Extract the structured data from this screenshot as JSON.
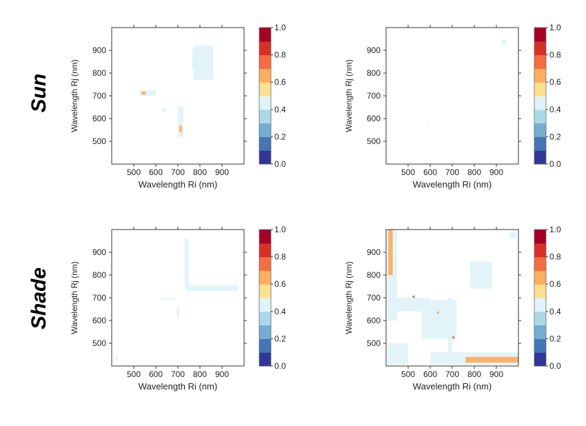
{
  "row_labels": [
    "Sun",
    "Shade"
  ],
  "colorbar": {
    "ticks": [
      "0.0",
      "0.2",
      "0.4",
      "0.6",
      "0.8",
      "1.0"
    ],
    "colors": [
      "#313695",
      "#4575b4",
      "#74add1",
      "#abd9e9",
      "#e0f3f8",
      "#fee090",
      "#fdae61",
      "#f46d43",
      "#d73027",
      "#a50026"
    ]
  },
  "chart_data": [
    {
      "type": "heatmap",
      "panel": "sun-left",
      "xlabel": "Wavelength Ri (nm)",
      "ylabel": "Wavelength Rj (nm)",
      "xticks": [
        "500",
        "600",
        "700",
        "800",
        "900"
      ],
      "yticks": [
        "500",
        "600",
        "700",
        "800",
        "900"
      ],
      "xlim": [
        400,
        1000
      ],
      "ylim": [
        400,
        1000
      ],
      "clim": [
        0,
        1
      ],
      "regions": [
        {
          "x": [
            770,
            860
          ],
          "y": [
            770,
            920
          ],
          "value": 0.45
        },
        {
          "x": [
            765,
            815
          ],
          "y": [
            820,
            905
          ],
          "value": 0.4
        },
        {
          "x": [
            525,
            600
          ],
          "y": [
            700,
            725
          ],
          "value": 0.45
        },
        {
          "x": [
            535,
            555
          ],
          "y": [
            705,
            718
          ],
          "value": 0.62
        },
        {
          "x": [
            700,
            725
          ],
          "y": [
            520,
            650
          ],
          "value": 0.45
        },
        {
          "x": [
            707,
            718
          ],
          "y": [
            540,
            570
          ],
          "value": 0.65
        },
        {
          "x": [
            630,
            648
          ],
          "y": [
            630,
            648
          ],
          "value": 0.42
        }
      ]
    },
    {
      "type": "heatmap",
      "panel": "sun-right",
      "xlabel": "Wavelength Ri (nm)",
      "ylabel": "Wavelength Rj (nm)",
      "xticks": [
        "500",
        "600",
        "700",
        "800",
        "900"
      ],
      "yticks": [
        "500",
        "600",
        "700",
        "800",
        "900"
      ],
      "xlim": [
        400,
        1000
      ],
      "ylim": [
        400,
        1000
      ],
      "clim": [
        0,
        1
      ],
      "regions": [
        {
          "x": [
            925,
            945
          ],
          "y": [
            925,
            945
          ],
          "value": 0.42
        },
        {
          "x": [
            585,
            592
          ],
          "y": [
            585,
            592
          ],
          "value": 0.42
        }
      ]
    },
    {
      "type": "heatmap",
      "panel": "shade-left",
      "xlabel": "Wavelength Ri (nm)",
      "ylabel": "Wavelength Rj (nm)",
      "xticks": [
        "500",
        "600",
        "700",
        "800",
        "900"
      ],
      "yticks": [
        "500",
        "600",
        "700",
        "800",
        "900"
      ],
      "xlim": [
        400,
        1000
      ],
      "ylim": [
        400,
        1000
      ],
      "clim": [
        0,
        1
      ],
      "regions": [
        {
          "x": [
            730,
            750
          ],
          "y": [
            740,
            960
          ],
          "value": 0.45
        },
        {
          "x": [
            740,
            970
          ],
          "y": [
            730,
            755
          ],
          "value": 0.45
        },
        {
          "x": [
            620,
            680
          ],
          "y": [
            693,
            700
          ],
          "value": 0.42
        },
        {
          "x": [
            695,
            705
          ],
          "y": [
            610,
            660
          ],
          "value": 0.42
        },
        {
          "x": [
            420,
            428
          ],
          "y": [
            428,
            436
          ],
          "value": 0.55
        }
      ]
    },
    {
      "type": "heatmap",
      "panel": "shade-right",
      "xlabel": "Wavelength Ri (nm)",
      "ylabel": "Wavelength Rj (nm)",
      "xticks": [
        "500",
        "600",
        "700",
        "800",
        "900"
      ],
      "yticks": [
        "500",
        "600",
        "700",
        "800",
        "900"
      ],
      "xlim": [
        400,
        1000
      ],
      "ylim": [
        400,
        1000
      ],
      "clim": [
        0,
        1
      ],
      "regions": [
        {
          "x": [
            405,
            450
          ],
          "y": [
            600,
            1000
          ],
          "value": 0.45
        },
        {
          "x": [
            410,
            430
          ],
          "y": [
            800,
            1000
          ],
          "value": 0.6
        },
        {
          "x": [
            405,
            600
          ],
          "y": [
            640,
            700
          ],
          "value": 0.45
        },
        {
          "x": [
            560,
            720
          ],
          "y": [
            520,
            690
          ],
          "value": 0.45
        },
        {
          "x": [
            405,
            500
          ],
          "y": [
            405,
            500
          ],
          "value": 0.42
        },
        {
          "x": [
            600,
            1000
          ],
          "y": [
            405,
            460
          ],
          "value": 0.45
        },
        {
          "x": [
            760,
            1000
          ],
          "y": [
            415,
            440
          ],
          "value": 0.6
        },
        {
          "x": [
            680,
            700
          ],
          "y": [
            420,
            700
          ],
          "value": 0.45
        },
        {
          "x": [
            780,
            880
          ],
          "y": [
            740,
            860
          ],
          "value": 0.42
        },
        {
          "x": [
            520,
            530
          ],
          "y": [
            700,
            710
          ],
          "value": 0.7
        },
        {
          "x": [
            700,
            710
          ],
          "y": [
            520,
            530
          ],
          "value": 0.7
        },
        {
          "x": [
            630,
            640
          ],
          "y": [
            630,
            640
          ],
          "value": 0.6
        },
        {
          "x": [
            960,
            990
          ],
          "y": [
            960,
            990
          ],
          "value": 0.42
        }
      ]
    }
  ]
}
